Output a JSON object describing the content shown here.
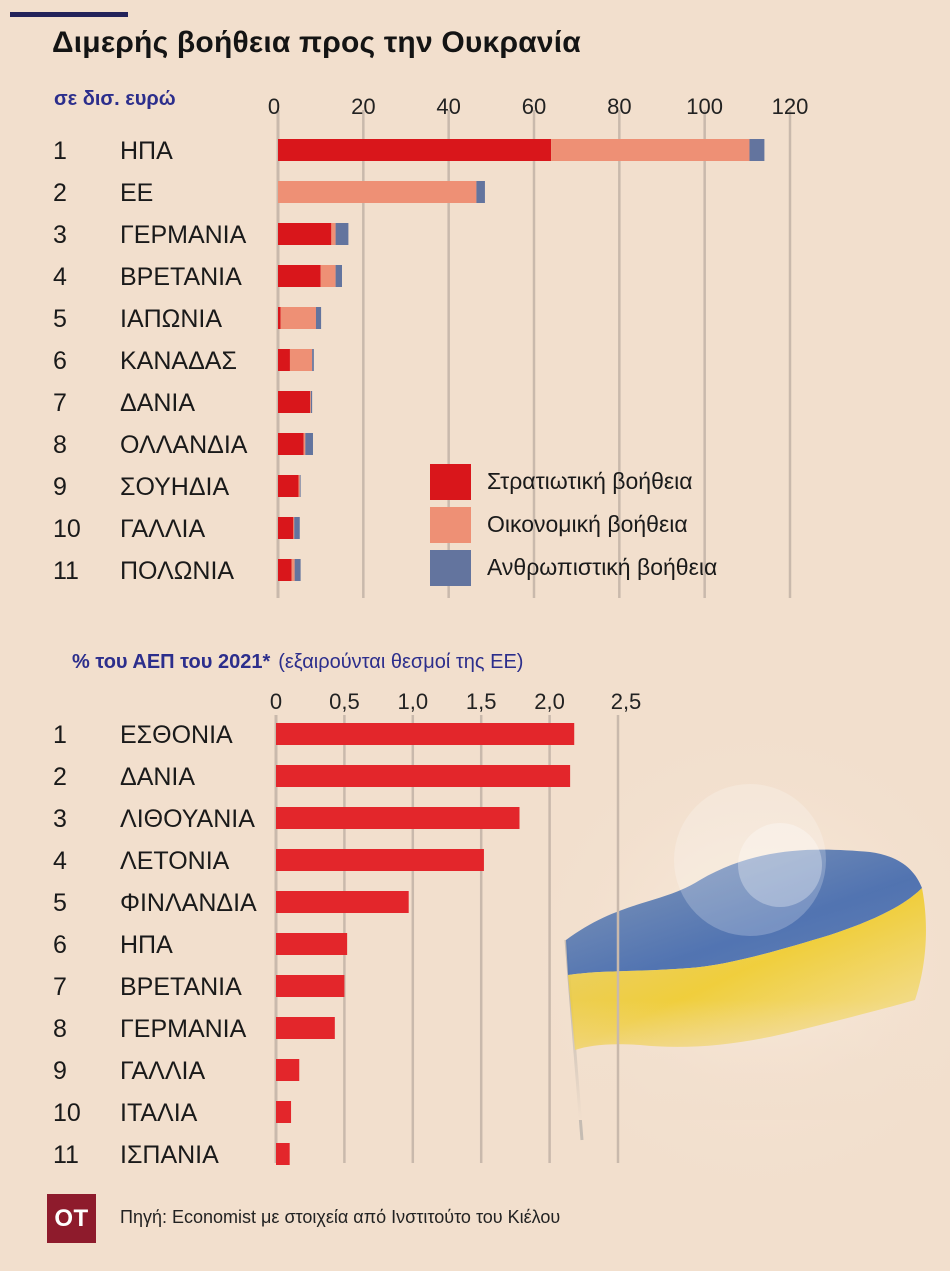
{
  "title": "Διμερής βοήθεια προς την Ουκρανία",
  "units_label": "σε  δισ. ευρώ",
  "gdp_label_bold": "% του ΑΕΠ του 2021*",
  "gdp_label_note": "(εξαιρούνται θεσμοί της ΕΕ)",
  "legend": [
    {
      "label": "Στρατιωτική βοήθεια",
      "color": "#d9161b"
    },
    {
      "label": "Οικονομική βοήθεια",
      "color": "#ee9075"
    },
    {
      "label": "Ανθρωπιστική βοήθεια",
      "color": "#63749e"
    }
  ],
  "source": "Πηγή: Economist με στοιχεία από Ινστιτούτο του Κιέλου",
  "logo": "OT",
  "chart_data": [
    {
      "type": "bar",
      "stacked": true,
      "orientation": "horizontal",
      "xlim": [
        0,
        120
      ],
      "ticks": [
        "0",
        "20",
        "40",
        "60",
        "80",
        "100",
        "120"
      ],
      "ranks": [
        "1",
        "2",
        "3",
        "4",
        "5",
        "6",
        "7",
        "8",
        "9",
        "10",
        "11"
      ],
      "categories": [
        "ΗΠΑ",
        "ΕΕ",
        "ΓΕΡΜΑΝΙΑ",
        "ΒΡΕΤΑΝΙΑ",
        "ΙΑΠΩΝΙΑ",
        "ΚΑΝΑΔΑΣ",
        "ΔΑΝΙΑ",
        "ΟΛΛΑΝΔΙΑ",
        "ΣΟΥΗΔΙΑ",
        "ΓΑΛΛΙΑ",
        "ΠΟΛΩΝΙΑ"
      ],
      "series": [
        {
          "name": "Στρατιωτική βοήθεια",
          "color": "#d9161b",
          "values": [
            64.0,
            0,
            12.5,
            10.0,
            0.6,
            2.8,
            7.5,
            6.0,
            4.8,
            3.6,
            3.2
          ]
        },
        {
          "name": "Οικονομική βοήθεια",
          "color": "#ee9075",
          "values": [
            46.5,
            46.5,
            1.0,
            3.5,
            8.3,
            5.2,
            0.2,
            0.4,
            0.3,
            0.2,
            0.7
          ]
        },
        {
          "name": "Ανθρωπιστική βοήθεια",
          "color": "#63749e",
          "values": [
            3.5,
            2.0,
            3.0,
            1.5,
            1.2,
            0.4,
            0.3,
            1.8,
            0.2,
            1.3,
            1.4
          ]
        }
      ]
    },
    {
      "type": "bar",
      "orientation": "horizontal",
      "xlim": [
        0,
        2.5
      ],
      "ticks": [
        "0",
        "0,5",
        "1,0",
        "1,5",
        "2,0",
        "2,5"
      ],
      "ranks": [
        "1",
        "2",
        "3",
        "4",
        "5",
        "6",
        "7",
        "8",
        "9",
        "10",
        "11"
      ],
      "categories": [
        "ΕΣΘΟΝΙΑ",
        "ΔΑΝΙΑ",
        "ΛΙΘΟΥΑΝΙΑ",
        "ΛΕΤΟΝΙΑ",
        "ΦΙΝΛΑΝΔΙΑ",
        "ΗΠΑ",
        "ΒΡΕΤΑΝΙΑ",
        "ΓΕΡΜΑΝΙΑ",
        "ΓΑΛΛΙΑ",
        "ΙΤΑΛΙΑ",
        "ΙΣΠΑΝΙΑ"
      ],
      "color": "#e3262b",
      "values": [
        2.18,
        2.15,
        1.78,
        1.52,
        0.97,
        0.52,
        0.5,
        0.43,
        0.17,
        0.11,
        0.1
      ]
    }
  ]
}
